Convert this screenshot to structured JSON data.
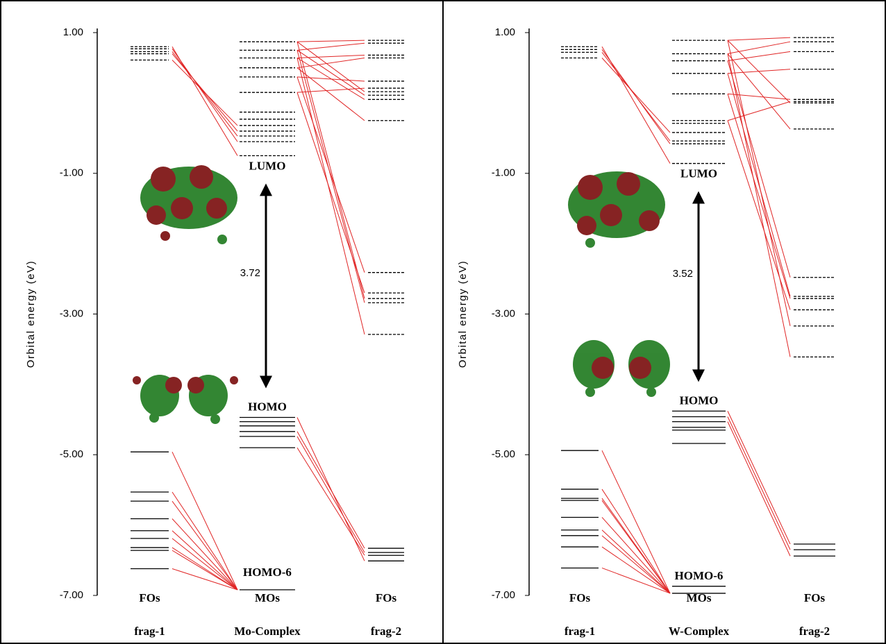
{
  "chart_data": [
    {
      "type": "energy-level",
      "ylabel": "Orbital energy (eV)",
      "ylim": [
        -7,
        1
      ],
      "yticks": [
        {
          "value": 1,
          "label": "1.00"
        },
        {
          "value": -1,
          "label": "-1.00"
        },
        {
          "value": -3,
          "label": "-3.00"
        },
        {
          "value": -5,
          "label": "-5.00"
        },
        {
          "value": -7,
          "label": "-7.00"
        }
      ],
      "line_color": "#e02424",
      "columns": [
        {
          "label": "frag-1",
          "sublabel": "FOs",
          "levels": [
            0.8,
            0.77,
            0.73,
            0.7,
            0.61,
            -4.96,
            -5.53,
            -5.66,
            -5.91,
            -6.08,
            -6.19,
            -6.32,
            -6.36,
            -6.62
          ]
        },
        {
          "label": "Mo-Complex",
          "sublabel": "MOs",
          "levels": [
            0.87,
            0.75,
            0.64,
            0.5,
            0.37,
            0.15,
            -0.13,
            -0.23,
            -0.32,
            -0.4,
            -0.47,
            -0.55,
            -0.75,
            -4.47,
            -4.53,
            -4.59,
            -4.67,
            -4.74,
            -4.9,
            -6.92
          ]
        },
        {
          "label": "frag-2",
          "sublabel": "FOs",
          "levels": [
            0.89,
            0.85,
            0.68,
            0.64,
            0.31,
            0.21,
            0.16,
            0.11,
            0.05,
            -0.25,
            -2.41,
            -2.7,
            -2.78,
            -2.84,
            -3.29,
            -6.33,
            -6.39,
            -6.43,
            -6.51
          ]
        }
      ],
      "annotations": {
        "lumo": "LUMO",
        "homo": "HOMO",
        "homo6": "HOMO-6",
        "gap": "3.72"
      }
    },
    {
      "type": "energy-level",
      "ylabel": "Orbital energy (eV)",
      "ylim": [
        -7,
        1
      ],
      "yticks": [
        {
          "value": 1,
          "label": "1.00"
        },
        {
          "value": -1,
          "label": "-1.00"
        },
        {
          "value": -3,
          "label": "-3.00"
        },
        {
          "value": -5,
          "label": "-5.00"
        },
        {
          "value": -7,
          "label": "-7.00"
        }
      ],
      "line_color": "#e02424",
      "columns": [
        {
          "label": "frag-1",
          "sublabel": "FOs",
          "levels": [
            0.8,
            0.76,
            0.72,
            0.64,
            -4.94,
            -5.49,
            -5.62,
            -5.65,
            -5.89,
            -6.07,
            -6.15,
            -6.31,
            -6.61
          ]
        },
        {
          "label": "W-Complex",
          "sublabel": "MOs",
          "levels": [
            0.89,
            0.7,
            0.6,
            0.42,
            0.13,
            -0.25,
            -0.29,
            -0.42,
            -0.54,
            -0.58,
            -0.86,
            -4.38,
            -4.46,
            -4.53,
            -4.61,
            -4.65,
            -4.84,
            -6.87,
            -6.97
          ]
        },
        {
          "label": "frag-2",
          "sublabel": "FOs",
          "levels": [
            0.93,
            0.87,
            0.73,
            0.48,
            0.05,
            0.02,
            0.0,
            -0.37,
            -2.48,
            -2.75,
            -2.78,
            -2.94,
            -3.17,
            -3.61,
            -6.27,
            -6.35,
            -6.44
          ]
        }
      ],
      "annotations": {
        "lumo": "LUMO",
        "homo": "HOMO",
        "homo6": "HOMO-6",
        "gap": "3.52"
      }
    }
  ]
}
